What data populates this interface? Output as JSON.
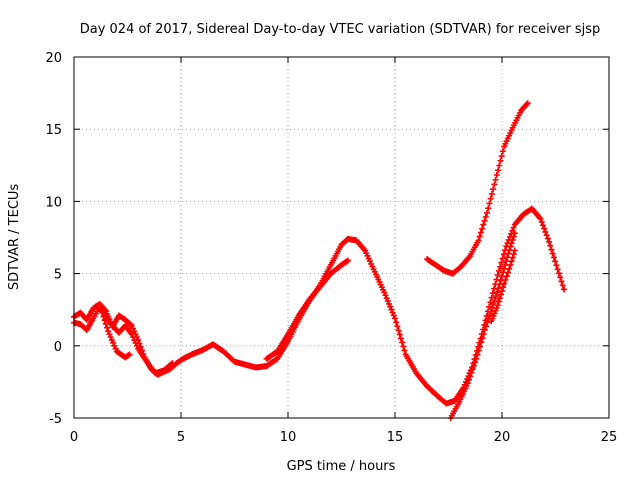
{
  "chart_data": {
    "type": "scatter",
    "title": "Day 024 of 2017, Sidereal Day-to-day VTEC variation (SDTVAR) for receiver sjsp",
    "xlabel": "GPS time / hours",
    "ylabel": "SDTVAR / TECUs",
    "xlim": [
      0,
      25
    ],
    "ylim": [
      -5,
      20
    ],
    "xticks": [
      0,
      5,
      10,
      15,
      20,
      25
    ],
    "yticks": [
      -5,
      0,
      5,
      10,
      15,
      20
    ],
    "grid": true,
    "marker": "plus",
    "color": "#ff0000",
    "series": [
      {
        "x": [
          0.0,
          0.3,
          0.6,
          0.9,
          1.2,
          1.5,
          1.8,
          2.1,
          2.4,
          2.7,
          3.0,
          3.3,
          3.6,
          3.9,
          4.2,
          4.5,
          4.8,
          5.1,
          5.5,
          6.0,
          6.5,
          7.0,
          7.5,
          8.0,
          8.5,
          9.0,
          9.5,
          10.0,
          10.5,
          11.0,
          11.5,
          12.0,
          12.5,
          12.8,
          13.2,
          13.6,
          14.0,
          14.5,
          15.0,
          15.5,
          16.0,
          16.5,
          17.0,
          17.4,
          17.8,
          18.2,
          18.6,
          19.0,
          19.4,
          19.8,
          20.2,
          20.6,
          21.0,
          21.4,
          21.8,
          22.2,
          22.6,
          22.9
        ],
        "y": [
          2.0,
          2.3,
          1.8,
          2.6,
          2.9,
          2.4,
          1.3,
          2.1,
          1.8,
          1.4,
          0.4,
          -0.8,
          -1.6,
          -2.0,
          -1.8,
          -1.6,
          -1.2,
          -0.9,
          -0.6,
          -0.3,
          0.1,
          -0.4,
          -1.1,
          -1.3,
          -1.5,
          -1.4,
          -0.9,
          0.3,
          1.8,
          3.1,
          4.2,
          5.6,
          7.0,
          7.4,
          7.3,
          6.6,
          5.3,
          3.7,
          1.9,
          -0.6,
          -1.9,
          -2.8,
          -3.5,
          -4.0,
          -3.8,
          -2.9,
          -1.5,
          0.5,
          2.7,
          4.9,
          6.9,
          8.4,
          9.1,
          9.5,
          8.8,
          7.2,
          5.3,
          3.9
        ]
      },
      {
        "x": [
          0.0,
          0.3,
          0.6,
          0.9,
          1.2,
          1.5,
          1.8,
          2.1,
          2.4,
          2.7,
          3.0,
          3.4,
          3.8,
          4.2,
          4.6
        ],
        "y": [
          1.6,
          1.5,
          1.1,
          1.9,
          2.7,
          2.0,
          1.4,
          0.9,
          1.4,
          0.8,
          -0.2,
          -1.1,
          -1.9,
          -1.7,
          -1.2
        ]
      },
      {
        "x": [
          1.2,
          1.6,
          2.0,
          2.4,
          2.6
        ],
        "y": [
          2.8,
          1.0,
          -0.4,
          -0.8,
          -0.6
        ]
      },
      {
        "x": [
          9.0,
          9.5,
          10.0,
          10.5,
          11.0,
          11.5,
          12.0,
          12.5,
          12.8
        ],
        "y": [
          -0.9,
          -0.4,
          0.8,
          2.1,
          3.2,
          4.1,
          5.0,
          5.6,
          5.9
        ]
      },
      {
        "x": [
          16.5,
          16.9,
          17.3,
          17.7,
          18.1,
          18.5,
          18.9,
          19.3,
          19.7,
          20.1,
          20.5,
          20.9,
          21.2
        ],
        "y": [
          6.0,
          5.6,
          5.2,
          5.0,
          5.5,
          6.2,
          7.3,
          9.2,
          11.5,
          13.8,
          15.1,
          16.3,
          16.8
        ]
      },
      {
        "x": [
          17.6,
          18.0,
          18.4,
          18.8,
          19.2,
          19.6,
          20.0,
          20.3,
          20.6
        ],
        "y": [
          -5.0,
          -3.9,
          -2.6,
          -0.9,
          1.1,
          2.9,
          4.8,
          6.4,
          7.8
        ]
      },
      {
        "x": [
          19.5,
          19.8,
          20.1,
          20.4,
          20.6
        ],
        "y": [
          1.7,
          2.8,
          4.3,
          5.6,
          6.6
        ]
      }
    ]
  }
}
